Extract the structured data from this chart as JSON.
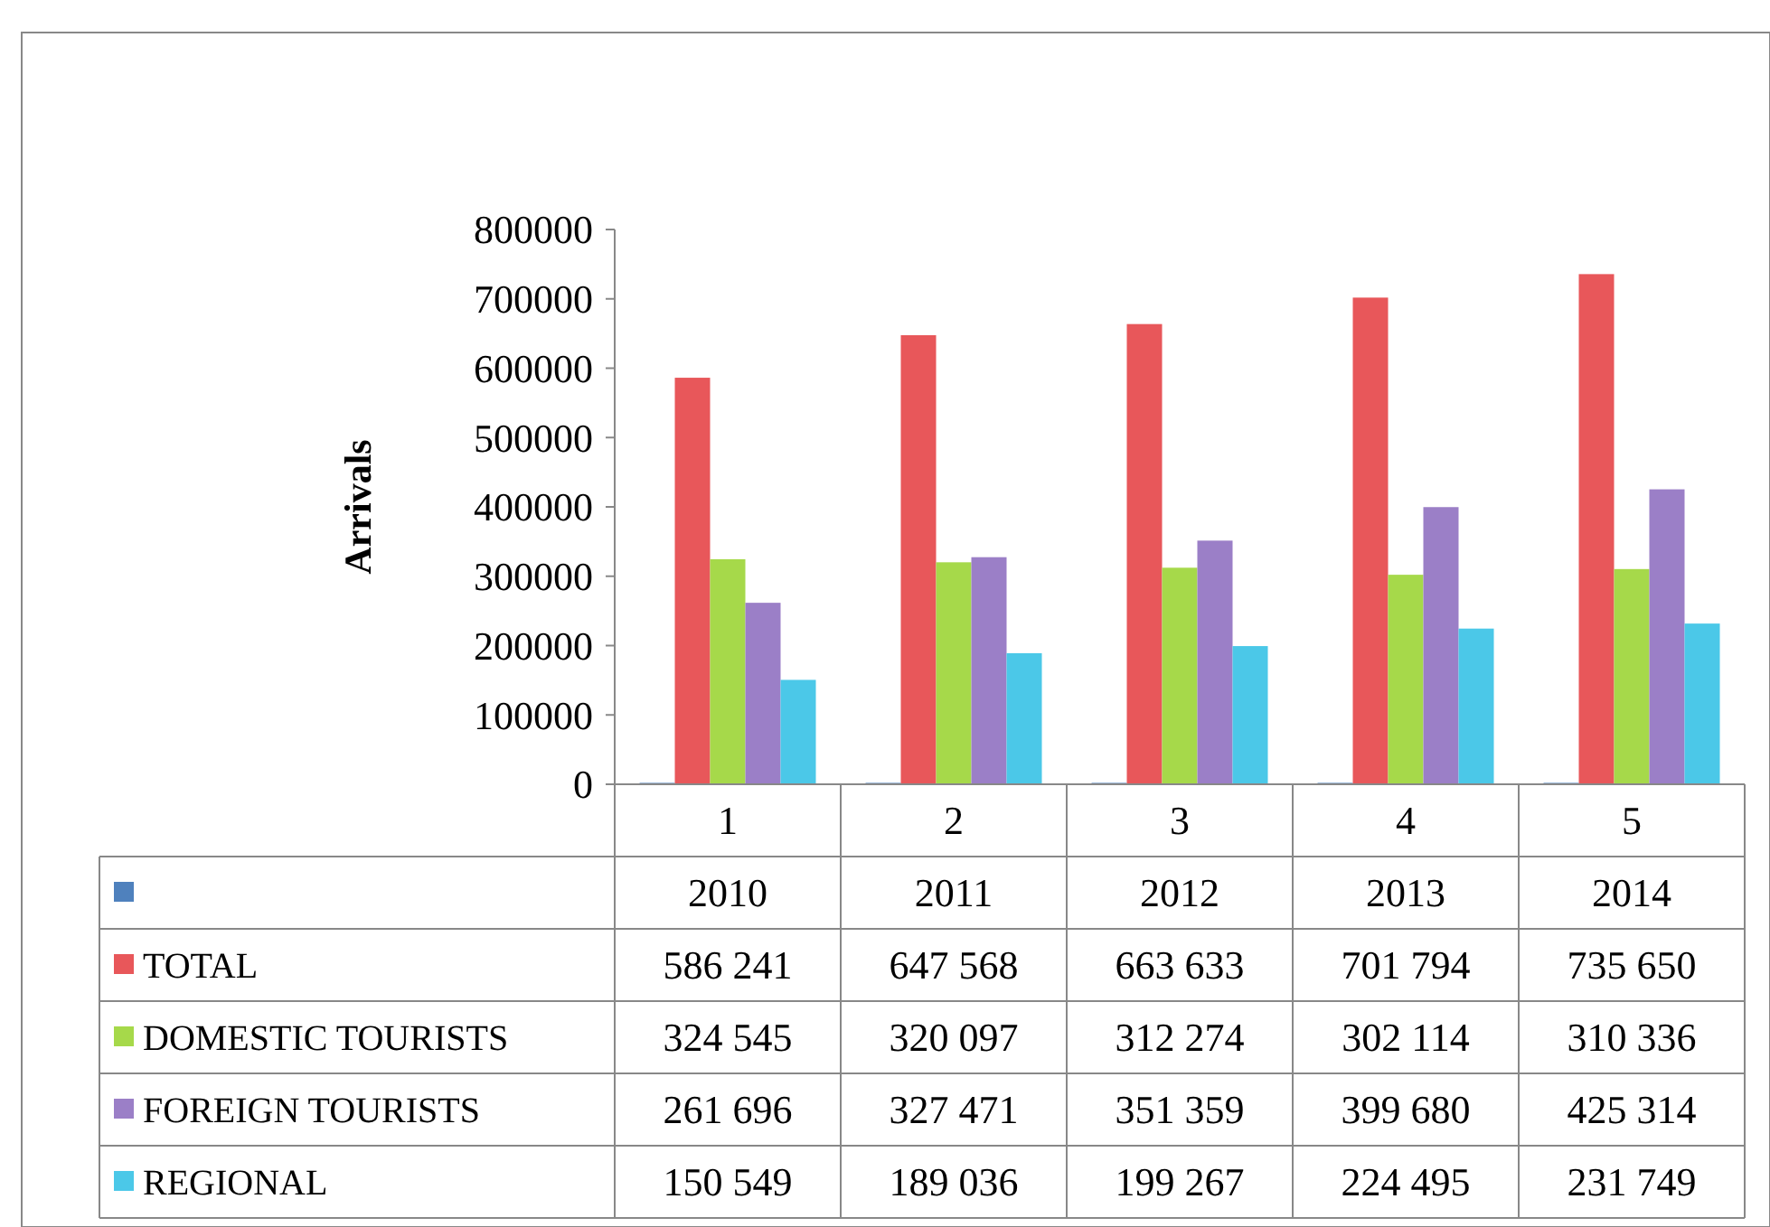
{
  "chart_data": {
    "type": "bar",
    "ylabel": "Arrivals",
    "categories": [
      "1",
      "2",
      "3",
      "4",
      "5"
    ],
    "ylim": [
      0,
      800000
    ],
    "yticks": [
      0,
      100000,
      200000,
      300000,
      400000,
      500000,
      600000,
      700000,
      800000
    ],
    "grid": false,
    "legend": "bottom left",
    "series": [
      {
        "color": "#4f81bd",
        "values": [
          2010,
          2011,
          2012,
          2013,
          2014
        ],
        "value_labels": [
          "2010",
          "2011",
          "2012",
          "2013",
          "2014"
        ]
      },
      {
        "name": "TOTAL",
        "color": "#e8575a",
        "values": [
          586241,
          647568,
          663633,
          701794,
          735650
        ],
        "value_labels": [
          "586 241",
          "647 568",
          "663 633",
          "701 794",
          "735 650"
        ]
      },
      {
        "name": "DOMESTIC TOURISTS",
        "color": "#a6d94a",
        "values": [
          324545,
          320097,
          312274,
          302114,
          310336
        ],
        "value_labels": [
          "324 545",
          "320 097",
          "312 274",
          "302 114",
          "310 336"
        ]
      },
      {
        "name": "FOREIGN TOURISTS",
        "color": "#9b7fc7",
        "values": [
          261696,
          327471,
          351359,
          399680,
          425314
        ],
        "value_labels": [
          "261 696",
          "327 471",
          "351 359",
          "399 680",
          "425 314"
        ]
      },
      {
        "name": "REGIONAL",
        "color": "#4bc8e8",
        "values": [
          150549,
          189036,
          199267,
          224495,
          231749
        ],
        "value_labels": [
          "150 549",
          "189 036",
          "199 267",
          "224 495",
          "231 749"
        ]
      }
    ]
  }
}
